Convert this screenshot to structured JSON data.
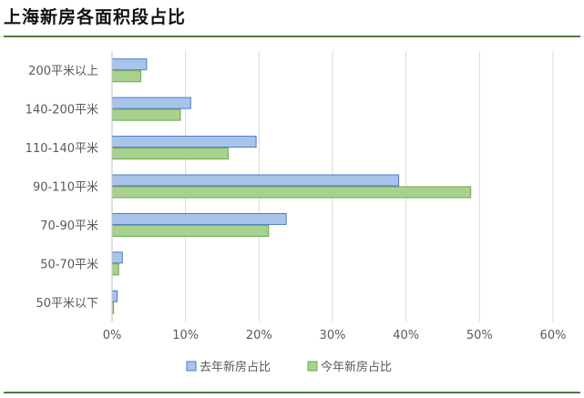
{
  "title": "上海新房各面积段占比",
  "chart_data": {
    "type": "bar",
    "orientation": "horizontal",
    "categories": [
      "200平米以上",
      "140-200平米",
      "110-140平米",
      "90-110平米",
      "70-90平米",
      "50-70平米",
      "50平米以下"
    ],
    "series": [
      {
        "name": "去年新房占比",
        "values": [
          4.7,
          10.7,
          19.6,
          39.0,
          23.7,
          1.4,
          0.7
        ]
      },
      {
        "name": "今年新房占比",
        "values": [
          3.9,
          9.3,
          15.8,
          48.8,
          21.3,
          0.9,
          0.2
        ]
      }
    ],
    "xlim": [
      0,
      60
    ],
    "xticks": [
      0,
      10,
      20,
      30,
      40,
      50,
      60
    ],
    "xtick_labels": [
      "0%",
      "10%",
      "20%",
      "30%",
      "40%",
      "50%",
      "60%"
    ],
    "grid": true,
    "legend_position": "bottom",
    "colors": {
      "series1_fill": "#a9c4eb",
      "series1_stroke": "#4a7cc4",
      "series2_fill": "#a9d18e",
      "series2_stroke": "#6aa84f",
      "grid": "#d9d9d9"
    }
  }
}
